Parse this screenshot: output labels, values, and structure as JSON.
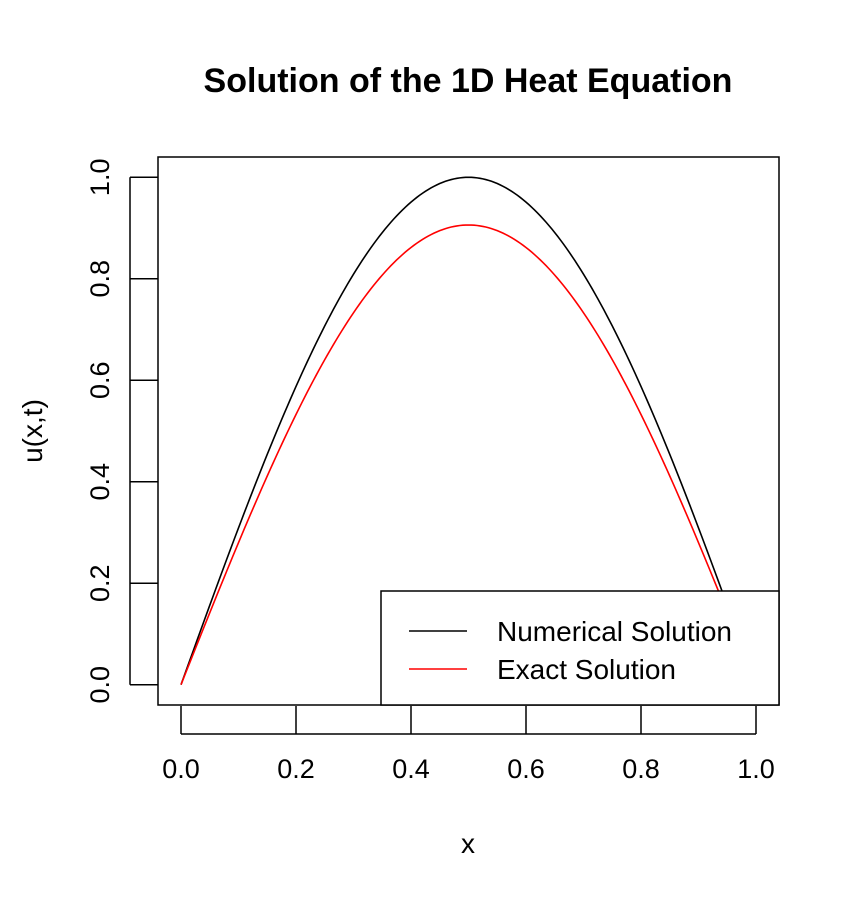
{
  "chart_data": {
    "type": "line",
    "title": "Solution of the 1D Heat Equation",
    "xlabel": "x",
    "ylabel": "u(x,t)",
    "xlim": [
      -0.04,
      1.04
    ],
    "ylim": [
      -0.04,
      1.04
    ],
    "x_ticks": [
      "0.0",
      "0.2",
      "0.4",
      "0.6",
      "0.8",
      "1.0"
    ],
    "y_ticks": [
      "0.0",
      "0.2",
      "0.4",
      "0.6",
      "0.8",
      "1.0"
    ],
    "grid": false,
    "legend_position": "bottom-right",
    "series": [
      {
        "name": "Numerical Solution",
        "color": "#000000",
        "amplitude": 1.0
      },
      {
        "name": "Exact Solution",
        "color": "#ff0000",
        "amplitude": 0.906
      }
    ]
  }
}
